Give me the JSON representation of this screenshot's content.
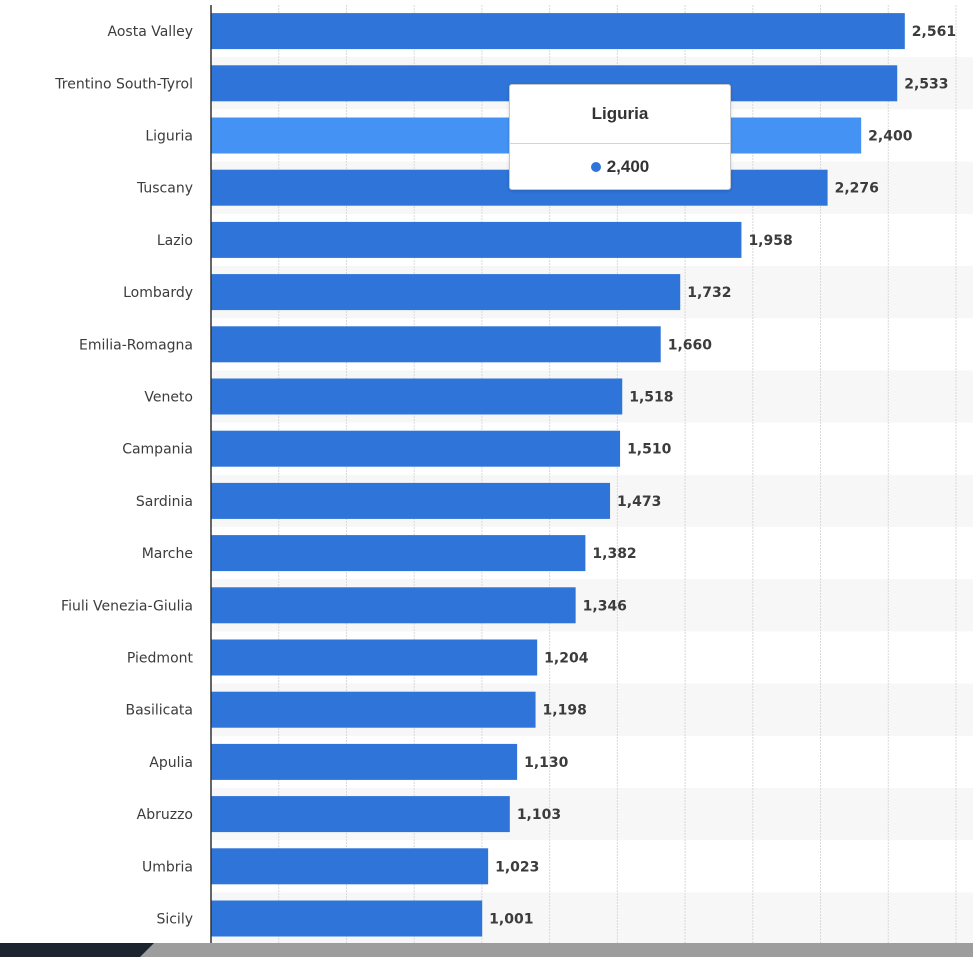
{
  "chart_data": {
    "type": "bar",
    "orientation": "horizontal",
    "categories": [
      "Aosta Valley",
      "Trentino South-Tyrol",
      "Liguria",
      "Tuscany",
      "Lazio",
      "Lombardy",
      "Emilia-Romagna",
      "Veneto",
      "Campania",
      "Sardinia",
      "Marche",
      "Fiuli Venezia-Giulia",
      "Piedmont",
      "Basilicata",
      "Apulia",
      "Abruzzo",
      "Umbria",
      "Sicily"
    ],
    "values": [
      2561,
      2533,
      2400,
      2276,
      1958,
      1732,
      1660,
      1518,
      1510,
      1473,
      1382,
      1346,
      1204,
      1198,
      1130,
      1103,
      1023,
      1001
    ],
    "value_labels": [
      "2,561",
      "2,533",
      "2,400",
      "2,276",
      "1,958",
      "1,732",
      "1,660",
      "1,518",
      "1,510",
      "1,473",
      "1,382",
      "1,346",
      "1,204",
      "1,198",
      "1,130",
      "1,103",
      "1,023",
      "1,001"
    ],
    "xlim": [
      0,
      2750
    ],
    "grid_step": 250,
    "grid": true,
    "highlighted_index": 2,
    "title": "",
    "xlabel": "",
    "ylabel": ""
  },
  "tooltip": {
    "title": "Liguria",
    "value": "2,400"
  },
  "colors": {
    "bar": "#2f74d8",
    "bar_highlight": "#4592f5",
    "row_alt": "#f7f7f7",
    "gridline": "#d9d9d9",
    "axis": "#333333"
  }
}
